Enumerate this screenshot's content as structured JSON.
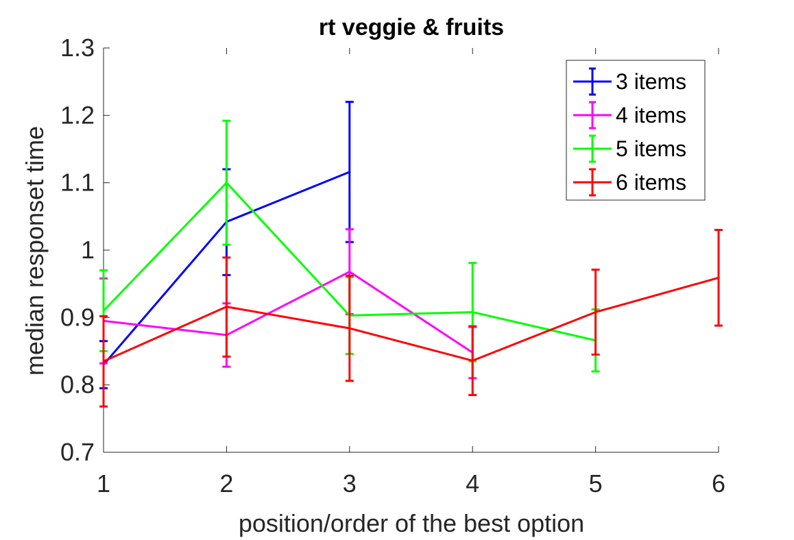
{
  "chart_data": {
    "type": "line",
    "title": "rt veggie & fruits",
    "xlabel": "position/order of the best option",
    "ylabel": "median responset time",
    "xlim": [
      1,
      6
    ],
    "ylim": [
      0.7,
      1.3
    ],
    "xticks": [
      "1",
      "2",
      "3",
      "4",
      "5",
      "6"
    ],
    "yticks": [
      "0.7",
      "0.8",
      "0.9",
      "1",
      "1.1",
      "1.2",
      "1.3"
    ],
    "grid": false,
    "legend_position": "top-right",
    "series": [
      {
        "name": "3 items",
        "color": "#0000ff",
        "x": [
          1,
          2,
          3
        ],
        "y": [
          0.83,
          1.042,
          1.116
        ],
        "lower": [
          0.795,
          0.963,
          1.012
        ],
        "upper": [
          0.865,
          1.12,
          1.22
        ]
      },
      {
        "name": "4 items",
        "color": "#ff00ff",
        "x": [
          1,
          2,
          3,
          4
        ],
        "y": [
          0.895,
          0.874,
          0.968,
          0.848
        ],
        "lower": [
          0.832,
          0.827,
          0.905,
          0.81
        ],
        "upper": [
          0.958,
          0.921,
          1.031,
          0.886
        ]
      },
      {
        "name": "5 items",
        "color": "#00ff00",
        "x": [
          1,
          2,
          3,
          4,
          5
        ],
        "y": [
          0.91,
          1.1,
          0.903,
          0.908,
          0.866
        ],
        "lower": [
          0.85,
          1.008,
          0.846,
          0.835,
          0.82
        ],
        "upper": [
          0.97,
          1.192,
          0.96,
          0.981,
          0.912
        ]
      },
      {
        "name": "6 items",
        "color": "#ff0000",
        "x": [
          1,
          2,
          3,
          4,
          5,
          6
        ],
        "y": [
          0.835,
          0.916,
          0.884,
          0.836,
          0.908,
          0.959
        ],
        "lower": [
          0.768,
          0.842,
          0.806,
          0.785,
          0.845,
          0.888
        ],
        "upper": [
          0.902,
          0.989,
          0.962,
          0.887,
          0.971,
          1.03
        ]
      }
    ]
  }
}
